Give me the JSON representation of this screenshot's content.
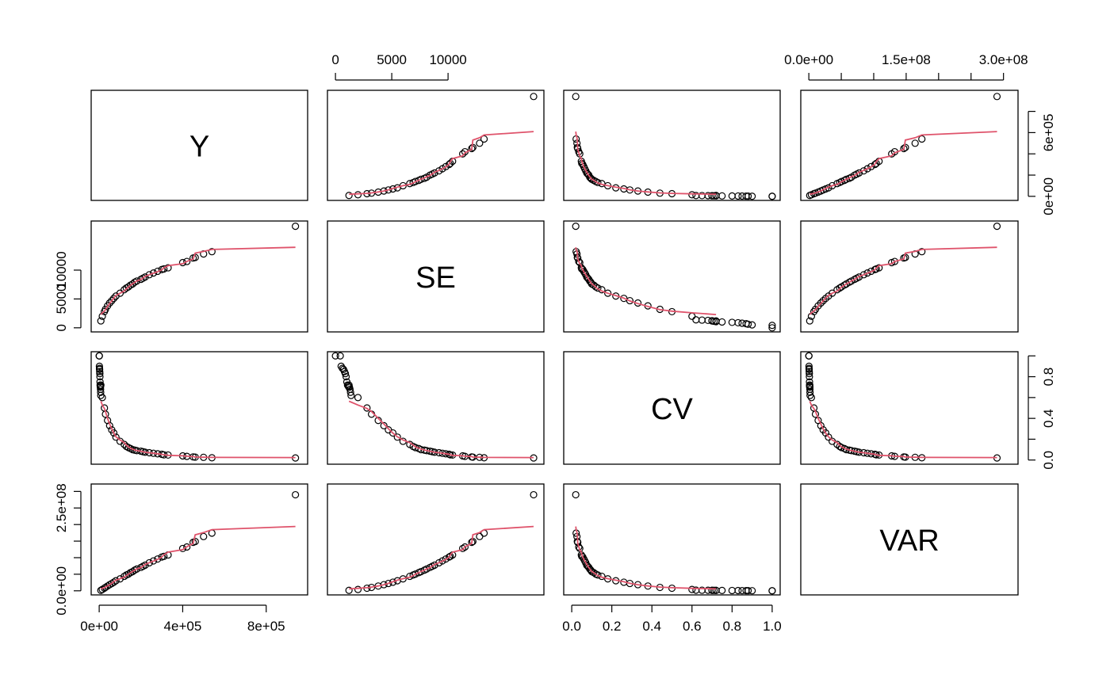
{
  "chart_data": {
    "type": "scatter",
    "subtype": "scatterplot-matrix-with-loess",
    "variables": [
      "Y",
      "SE",
      "CV",
      "VAR"
    ],
    "ranges": {
      "Y": [
        0,
        960000
      ],
      "SE": [
        0,
        17800
      ],
      "CV": [
        0,
        1
      ],
      "VAR": [
        0,
        310000000
      ]
    },
    "axes": {
      "Y": {
        "ticks": [
          0,
          400000,
          800000
        ],
        "tick_labels": [
          "0e+00",
          "4e+05",
          "8e+05"
        ],
        "side": "bottom"
      },
      "Y_right": {
        "ticks": [
          0,
          200000,
          400000,
          600000,
          800000
        ],
        "tick_labels": [
          "0e+00",
          "",
          "",
          "6e+05",
          ""
        ],
        "side": "right"
      },
      "SE": {
        "ticks": [
          0,
          5000,
          10000
        ],
        "tick_labels": [
          "0",
          "5000",
          "10000"
        ],
        "side": "top-and-left"
      },
      "CV": {
        "ticks": [
          0,
          0.2,
          0.4,
          0.6,
          0.8,
          1.0
        ],
        "tick_labels": [
          "0.0",
          "0.2",
          "0.4",
          "0.6",
          "0.8",
          "1.0"
        ],
        "side": "bottom"
      },
      "CV_right": {
        "ticks": [
          0,
          0.2,
          0.4,
          0.6,
          0.8,
          1.0
        ],
        "tick_labels": [
          "0.0",
          "",
          "0.4",
          "",
          "0.8",
          ""
        ],
        "side": "right"
      },
      "VAR_top": {
        "ticks": [
          0,
          50000000,
          100000000,
          150000000,
          200000000,
          250000000,
          300000000
        ],
        "tick_labels": [
          "0.0e+00",
          "",
          "",
          "1.5e+08",
          "",
          "",
          "3.0e+08"
        ],
        "side": "top"
      },
      "VAR_left": {
        "ticks": [
          0,
          50000000,
          100000000,
          150000000,
          200000000,
          250000000,
          300000000
        ],
        "tick_labels": [
          "0.0e+00",
          "",
          "",
          "",
          "",
          "2.5e+08",
          ""
        ],
        "side": "left"
      }
    },
    "points": {
      "Y": [
        8000,
        15000,
        25000,
        30000,
        40000,
        50000,
        60000,
        70000,
        80000,
        100000,
        120000,
        130000,
        140000,
        150000,
        160000,
        170000,
        180000,
        200000,
        210000,
        220000,
        240000,
        260000,
        280000,
        300000,
        310000,
        330000,
        400000,
        420000,
        450000,
        460000,
        500000,
        540000,
        940000
      ],
      "SE": [
        1200,
        2000,
        2800,
        3200,
        3800,
        4300,
        4700,
        5100,
        5500,
        6000,
        6600,
        6900,
        7100,
        7400,
        7600,
        7900,
        8100,
        8400,
        8600,
        8800,
        9200,
        9500,
        9800,
        10100,
        10200,
        10400,
        11300,
        11500,
        12100,
        12200,
        12800,
        13200,
        17600
      ],
      "CV": [
        0.72,
        0.6,
        0.5,
        0.44,
        0.38,
        0.33,
        0.29,
        0.26,
        0.22,
        0.18,
        0.15,
        0.13,
        0.12,
        0.11,
        0.1,
        0.095,
        0.09,
        0.085,
        0.08,
        0.075,
        0.07,
        0.065,
        0.06,
        0.055,
        0.05,
        0.048,
        0.04,
        0.035,
        0.03,
        0.028,
        0.026,
        0.022,
        0.02
      ],
      "VAR": [
        1400000,
        4000000,
        7800000,
        10200000,
        14400000,
        18500000,
        22100000,
        26000000,
        30300000,
        36000000,
        43600000,
        47600000,
        50400000,
        54800000,
        57800000,
        62400000,
        65600000,
        70600000,
        74000000,
        77400000,
        84600000,
        90300000,
        96000000,
        102000000,
        104000000,
        108200000,
        127700000,
        132300000,
        146400000,
        148800000,
        163800000,
        174200000,
        290000000
      ]
    },
    "extra_low_cv_points": {
      "CV": [
        1.0,
        1.0,
        0.9,
        0.88,
        0.87,
        0.85,
        0.83,
        0.8,
        0.75,
        0.72,
        0.71,
        0.7,
        0.7,
        0.68,
        0.65,
        0.62
      ],
      "Y": [
        0,
        700,
        1000,
        1500,
        2000,
        2500,
        3000,
        3500,
        4000,
        4500,
        5000,
        5500,
        6000,
        6500,
        7000,
        7500
      ]
    },
    "smoother_color": "#DF536B",
    "point_style": "open-circle",
    "xlabel": "",
    "ylabel": "",
    "title": ""
  }
}
